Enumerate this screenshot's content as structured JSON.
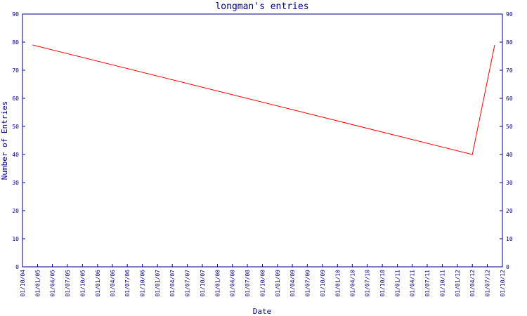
{
  "chart_data": {
    "type": "line",
    "title": "longman's entries",
    "xlabel": "Date",
    "ylabel": "Number of Entries",
    "ylim": [
      0,
      90
    ],
    "yticks": [
      0,
      10,
      20,
      30,
      40,
      50,
      60,
      70,
      80,
      90
    ],
    "xticks": [
      "01/10/04",
      "01/01/05",
      "01/04/05",
      "01/07/05",
      "01/10/05",
      "01/01/06",
      "01/04/06",
      "01/07/06",
      "01/10/06",
      "01/01/07",
      "01/04/07",
      "01/07/07",
      "01/10/07",
      "01/01/08",
      "01/04/08",
      "01/07/08",
      "01/10/08",
      "01/01/09",
      "01/04/09",
      "01/07/09",
      "01/10/09",
      "01/01/10",
      "01/04/10",
      "01/07/10",
      "01/10/10",
      "01/01/11",
      "01/04/11",
      "01/07/11",
      "01/10/11",
      "01/01/12",
      "01/04/12",
      "01/07/12",
      "01/10/12"
    ],
    "series": [
      {
        "color": "#ff0000",
        "points": [
          {
            "x": "2004-12-01",
            "y": 79
          },
          {
            "x": "2012-04-01",
            "y": 40
          },
          {
            "x": "2012-08-15",
            "y": 79
          }
        ]
      }
    ],
    "axis_color": "#000080",
    "grid": false
  }
}
